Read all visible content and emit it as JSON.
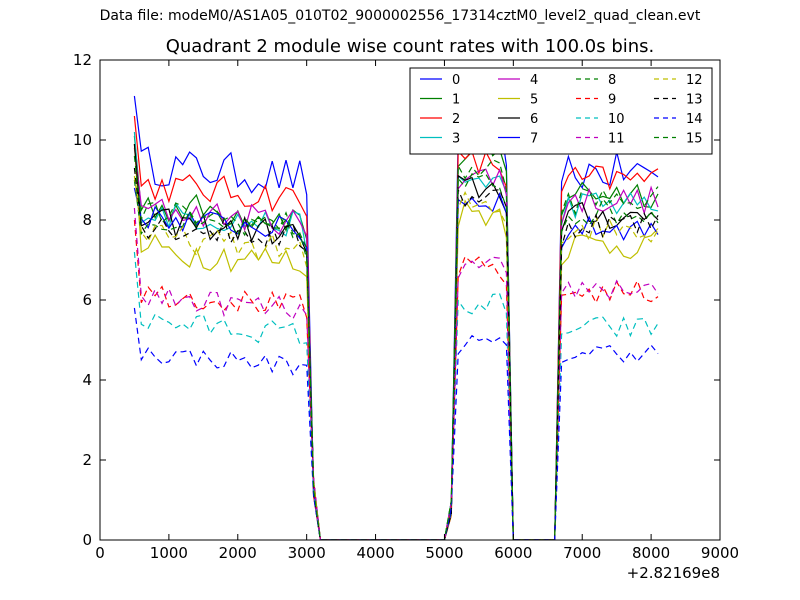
{
  "suptitle": "Data file: modeM0/AS1A05_010T02_9000002556_17314cztM0_level2_quad_clean.evt",
  "chart_data": {
    "type": "line",
    "title": "Quadrant 2 module wise count rates with 100.0s bins.",
    "xlabel": "",
    "ylabel": "",
    "x_offset_label": "+2.82169e8",
    "xlim": [
      0,
      9000
    ],
    "ylim": [
      0,
      12
    ],
    "xticks": [
      "0",
      "1000",
      "2000",
      "3000",
      "4000",
      "5000",
      "6000",
      "7000",
      "8000",
      "9000"
    ],
    "yticks": [
      "0",
      "2",
      "4",
      "6",
      "8",
      "10",
      "12"
    ],
    "grid": false,
    "legend_position": "top-right",
    "legend_columns": 4,
    "segments": [
      {
        "x_start": 500,
        "x_end": 2900
      },
      {
        "x_start": 5200,
        "x_end": 5800
      },
      {
        "x_start": 6800,
        "x_end": 8100
      }
    ],
    "series": [
      {
        "name": "0",
        "color": "#0000ff",
        "dash": "solid",
        "levels": [
          9.4,
          10.1,
          9.2
        ],
        "noise": 0.5,
        "start": 11.1
      },
      {
        "name": "1",
        "color": "#008000",
        "dash": "solid",
        "levels": [
          8.4,
          9.6,
          8.7
        ],
        "noise": 0.4,
        "start": 10.1
      },
      {
        "name": "2",
        "color": "#ff0000",
        "dash": "solid",
        "levels": [
          8.9,
          9.4,
          9.0
        ],
        "noise": 0.4,
        "start": 10.6
      },
      {
        "name": "3",
        "color": "#00bfbf",
        "dash": "solid",
        "levels": [
          8.2,
          9.0,
          8.4
        ],
        "noise": 0.35,
        "start": 10.2
      },
      {
        "name": "4",
        "color": "#bf00bf",
        "dash": "solid",
        "levels": [
          8.3,
          9.1,
          8.5
        ],
        "noise": 0.35,
        "start": 9.8
      },
      {
        "name": "5",
        "color": "#bfbf00",
        "dash": "solid",
        "levels": [
          7.3,
          8.2,
          7.4
        ],
        "noise": 0.4,
        "start": 9.9
      },
      {
        "name": "6",
        "color": "#000000",
        "dash": "solid",
        "levels": [
          8.0,
          8.8,
          8.1
        ],
        "noise": 0.35,
        "start": 9.9
      },
      {
        "name": "7",
        "color": "#0000ff",
        "dash": "solid",
        "levels": [
          8.1,
          8.5,
          7.8
        ],
        "noise": 0.3,
        "start": 8.8
      },
      {
        "name": "8",
        "color": "#008000",
        "dash": "dashed",
        "levels": [
          8.0,
          8.9,
          8.2
        ],
        "noise": 0.35,
        "start": 9.0
      },
      {
        "name": "9",
        "color": "#ff0000",
        "dash": "dashed",
        "levels": [
          6.2,
          6.8,
          6.2
        ],
        "noise": 0.3,
        "start": 8.0
      },
      {
        "name": "10",
        "color": "#00bfbf",
        "dash": "dashed",
        "levels": [
          5.5,
          5.9,
          5.3
        ],
        "noise": 0.3,
        "start": 7.2
      },
      {
        "name": "11",
        "color": "#bf00bf",
        "dash": "dashed",
        "levels": [
          6.1,
          6.8,
          6.3
        ],
        "noise": 0.3,
        "start": 8.3
      },
      {
        "name": "12",
        "color": "#bfbf00",
        "dash": "dashed",
        "levels": [
          7.6,
          8.4,
          7.8
        ],
        "noise": 0.35,
        "start": 9.1
      },
      {
        "name": "13",
        "color": "#000000",
        "dash": "dashed",
        "levels": [
          7.9,
          8.6,
          7.9
        ],
        "noise": 0.35,
        "start": 9.3
      },
      {
        "name": "14",
        "color": "#0000ff",
        "dash": "dashed",
        "levels": [
          4.7,
          4.9,
          4.7
        ],
        "noise": 0.25,
        "start": 5.8
      },
      {
        "name": "15",
        "color": "#008000",
        "dash": "dashed",
        "levels": [
          8.2,
          9.3,
          8.5
        ],
        "noise": 0.35,
        "start": 9.6
      }
    ]
  }
}
